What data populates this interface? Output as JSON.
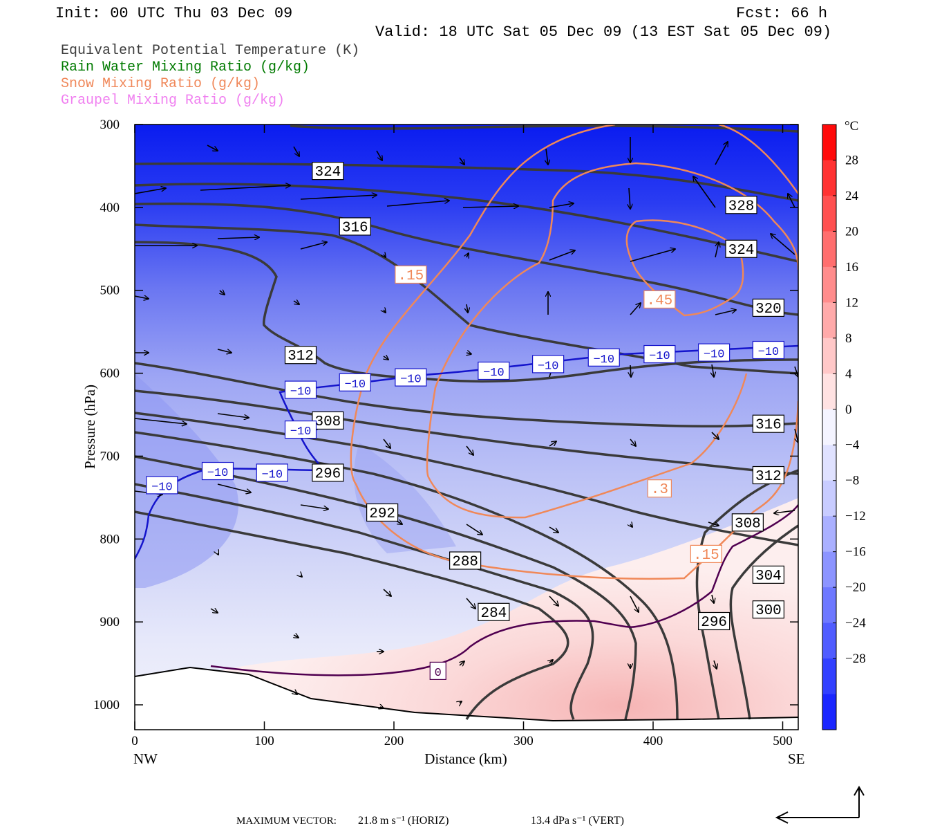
{
  "header": {
    "init": "Init: 00 UTC Thu 03 Dec 09",
    "fcst": "Fcst:   66 h",
    "valid": "Valid: 18 UTC Sat 05 Dec 09 (13 EST Sat 05 Dec 09)"
  },
  "legend": [
    {
      "label": "Equivalent Potential Temperature (K)",
      "color": "#3c3c3c"
    },
    {
      "label": "Rain Water Mixing Ratio (g/kg)",
      "color": "#007a00"
    },
    {
      "label": "Snow Mixing Ratio (g/kg)",
      "color": "#f0885a"
    },
    {
      "label": "Graupel Mixing Ratio (g/kg)",
      "color": "#f080f0"
    }
  ],
  "footer": {
    "max_vector_label": "MAXIMUM VECTOR:",
    "horiz": "21.8 m s⁻¹ (HORIZ)",
    "vert": "13.4 dPa s⁻¹ (VERT)"
  },
  "colorbar": {
    "unit": "°C",
    "tick_labels": [
      "28",
      "24",
      "20",
      "16",
      "12",
      "8",
      "4",
      "0",
      "−4",
      "−8",
      "−12",
      "−16",
      "−20",
      "−24",
      "−28"
    ],
    "levels": [
      28,
      24,
      20,
      16,
      12,
      8,
      4,
      0,
      -4,
      -8,
      -12,
      -16,
      -20,
      -24,
      -28
    ]
  },
  "chart_data": {
    "type": "cross-section",
    "xlabel": "Distance (km)",
    "ylabel": "Pressure (hPa)",
    "x_ticks": [
      0,
      100,
      200,
      300,
      400,
      500
    ],
    "y_ticks": [
      300,
      400,
      500,
      600,
      700,
      800,
      900,
      1000
    ],
    "xlim": [
      0,
      512
    ],
    "ylim": [
      300,
      1030
    ],
    "left_end": "NW",
    "right_end": "SE",
    "theta_e_labels": [
      {
        "v": "324",
        "x": 149,
        "p": 356
      },
      {
        "v": "316",
        "x": 170,
        "p": 423
      },
      {
        "v": "312",
        "x": 128,
        "p": 578
      },
      {
        "v": "308",
        "x": 149,
        "p": 657
      },
      {
        "v": "296",
        "x": 149,
        "p": 720
      },
      {
        "v": "292",
        "x": 191,
        "p": 768
      },
      {
        "v": "288",
        "x": 255,
        "p": 826
      },
      {
        "v": "284",
        "x": 277,
        "p": 888
      },
      {
        "v": "328",
        "x": 468,
        "p": 397
      },
      {
        "v": "324",
        "x": 468,
        "p": 450
      },
      {
        "v": "320",
        "x": 489,
        "p": 521
      },
      {
        "v": "316",
        "x": 489,
        "p": 661
      },
      {
        "v": "312",
        "x": 489,
        "p": 723
      },
      {
        "v": "308",
        "x": 473,
        "p": 780
      },
      {
        "v": "304",
        "x": 489,
        "p": 843
      },
      {
        "v": "300",
        "x": 489,
        "p": 885
      },
      {
        "v": "296",
        "x": 447,
        "p": 899
      }
    ],
    "snow_labels": [
      {
        "v": ".15",
        "x": 213,
        "p": 481
      },
      {
        "v": ".45",
        "x": 405,
        "p": 511
      },
      {
        "v": ".3",
        "x": 405,
        "p": 739
      },
      {
        "v": ".15",
        "x": 441,
        "p": 818
      }
    ],
    "temp_labels": [
      {
        "v": "−10",
        "x": 21,
        "p": 735
      },
      {
        "v": "−10",
        "x": 64,
        "p": 718
      },
      {
        "v": "−10",
        "x": 106,
        "p": 720
      },
      {
        "v": "−10",
        "x": 128,
        "p": 668
      },
      {
        "v": "−10",
        "x": 128,
        "p": 620
      },
      {
        "v": "−10",
        "x": 170,
        "p": 611
      },
      {
        "v": "−10",
        "x": 213,
        "p": 605
      },
      {
        "v": "−10",
        "x": 277,
        "p": 597
      },
      {
        "v": "−10",
        "x": 319,
        "p": 589
      },
      {
        "v": "−10",
        "x": 362,
        "p": 581
      },
      {
        "v": "−10",
        "x": 405,
        "p": 577
      },
      {
        "v": "−10",
        "x": 447,
        "p": 575
      },
      {
        "v": "−10",
        "x": 489,
        "p": 572
      },
      {
        "v": "0",
        "x": 234,
        "p": 959
      }
    ]
  }
}
